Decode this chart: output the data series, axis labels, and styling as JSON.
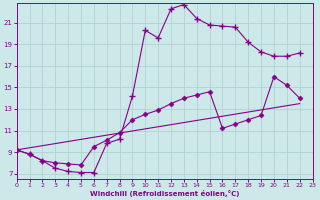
{
  "xlabel": "Windchill (Refroidissement éolien,°C)",
  "background_color": "#cce8e8",
  "grid_color": "#aacfcf",
  "line_color": "#880088",
  "xlim": [
    0,
    23
  ],
  "ylim": [
    6.5,
    22.8
  ],
  "xticks": [
    0,
    1,
    2,
    3,
    4,
    5,
    6,
    7,
    8,
    9,
    10,
    11,
    12,
    13,
    14,
    15,
    16,
    17,
    18,
    19,
    20,
    21,
    22,
    23
  ],
  "yticks": [
    7,
    9,
    11,
    13,
    15,
    17,
    19,
    21
  ],
  "series1_x": [
    0,
    1,
    2,
    3,
    4,
    5,
    6,
    7,
    8,
    9,
    10,
    11,
    12,
    13,
    14,
    15,
    16,
    17,
    18,
    19,
    20,
    21,
    22
  ],
  "series1_y": [
    9.2,
    8.8,
    8.2,
    7.5,
    7.2,
    7.1,
    7.1,
    9.8,
    10.2,
    14.2,
    20.3,
    19.6,
    22.3,
    22.7,
    21.4,
    20.8,
    20.7,
    20.6,
    19.2,
    18.3,
    17.9,
    17.9,
    18.2
  ],
  "series2_x": [
    0,
    1,
    2,
    3,
    4,
    5,
    6,
    7,
    8,
    9,
    10,
    11,
    12,
    13,
    14,
    15,
    16,
    17,
    18,
    19,
    20,
    21,
    22
  ],
  "series2_y": [
    9.2,
    8.8,
    8.2,
    8.0,
    7.9,
    7.8,
    9.5,
    10.1,
    10.8,
    12.0,
    12.5,
    12.9,
    13.5,
    14.0,
    14.3,
    14.6,
    11.2,
    11.6,
    12.0,
    12.4,
    16.0,
    15.2,
    14.0
  ],
  "series3_x": [
    0,
    22
  ],
  "series3_y": [
    9.2,
    13.5
  ]
}
